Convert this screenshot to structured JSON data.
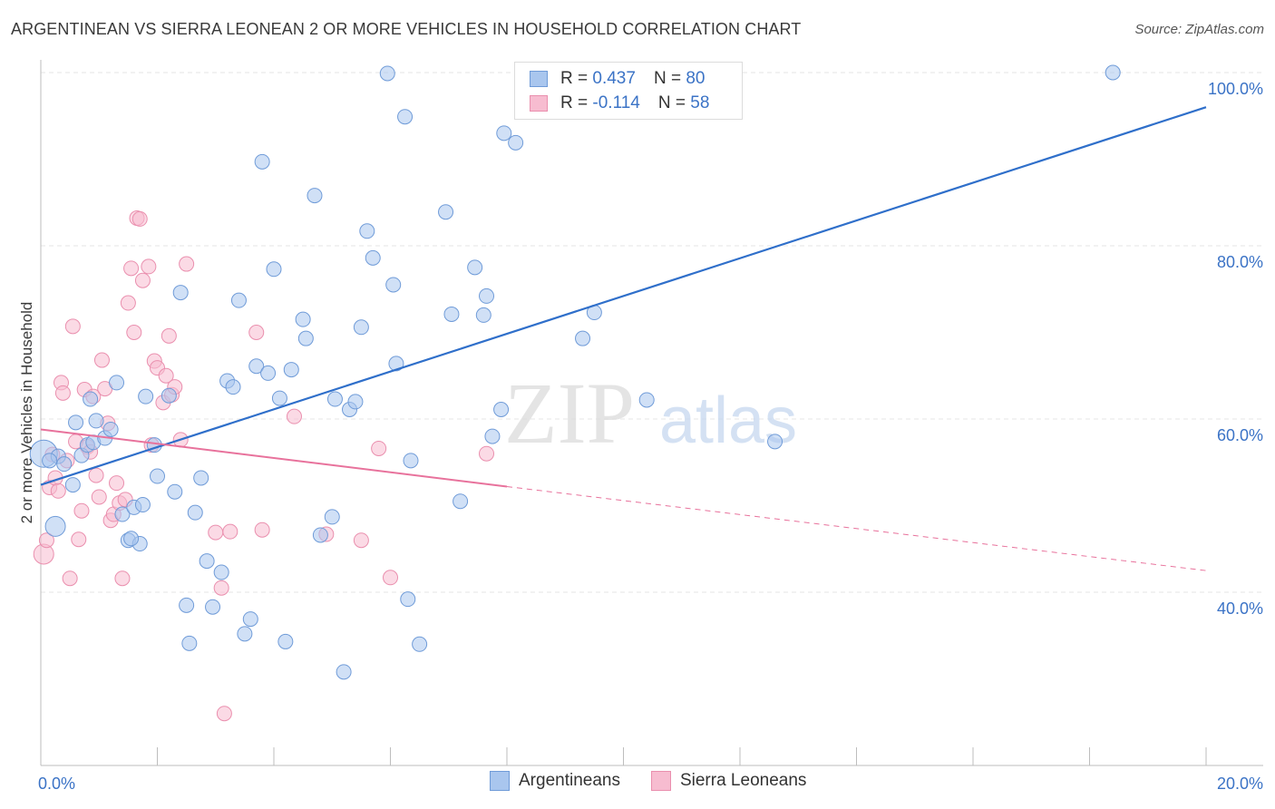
{
  "title": "ARGENTINEAN VS SIERRA LEONEAN 2 OR MORE VEHICLES IN HOUSEHOLD CORRELATION CHART",
  "source": "Source: ZipAtlas.com",
  "watermark": {
    "zip": "ZIP",
    "atlas": "atlas"
  },
  "legend": {
    "rows": [
      {
        "r_label": "R =",
        "r_value": "0.437",
        "n_label": "N =",
        "n_value": "80"
      },
      {
        "r_label": "R =",
        "r_value": "-0.114",
        "n_label": "N =",
        "n_value": "58"
      }
    ]
  },
  "bottom_legend": [
    "Argentineans",
    "Sierra Leoneans"
  ],
  "colors": {
    "blue_fill": "#a9c6ee",
    "blue_stroke": "#6f9bd8",
    "blue_line": "#2f6fca",
    "pink_fill": "#f7bcd0",
    "pink_stroke": "#ea8fae",
    "pink_line": "#e8729c",
    "tick_text": "#3b73c6",
    "grid": "#e6e6e6"
  },
  "chart_data": {
    "type": "scatter",
    "title": "ARGENTINEAN VS SIERRA LEONEAN 2 OR MORE VEHICLES IN HOUSEHOLD CORRELATION CHART",
    "xlabel": "",
    "ylabel": "2 or more Vehicles in Household",
    "xlim": [
      0,
      20
    ],
    "ylim": [
      20,
      102
    ],
    "x_ticks": [
      "0.0%",
      "20.0%"
    ],
    "y_ticks": [
      {
        "value": 40,
        "label": "40.0%"
      },
      {
        "value": 60,
        "label": "60.0%"
      },
      {
        "value": 80,
        "label": "80.0%"
      },
      {
        "value": 100,
        "label": "100.0%"
      }
    ],
    "grid": true,
    "legend_position": "top-center",
    "series": [
      {
        "name": "Argentineans",
        "trend": {
          "x": [
            0.0,
            20.0
          ],
          "y": [
            52.4,
            96.0
          ],
          "style": "solid"
        },
        "points": [
          {
            "x": 0.05,
            "y": 56.0,
            "s": "l"
          },
          {
            "x": 0.25,
            "y": 47.6,
            "s": "m"
          },
          {
            "x": 0.3,
            "y": 55.7
          },
          {
            "x": 0.4,
            "y": 54.8
          },
          {
            "x": 0.6,
            "y": 59.6
          },
          {
            "x": 0.7,
            "y": 55.8
          },
          {
            "x": 0.8,
            "y": 57.0
          },
          {
            "x": 0.85,
            "y": 62.3
          },
          {
            "x": 0.9,
            "y": 57.3
          },
          {
            "x": 0.95,
            "y": 59.8
          },
          {
            "x": 1.1,
            "y": 57.8
          },
          {
            "x": 1.2,
            "y": 58.8
          },
          {
            "x": 1.3,
            "y": 64.2
          },
          {
            "x": 1.4,
            "y": 49.0
          },
          {
            "x": 1.5,
            "y": 46.0
          },
          {
            "x": 1.6,
            "y": 49.8
          },
          {
            "x": 1.7,
            "y": 45.6
          },
          {
            "x": 1.75,
            "y": 50.1
          },
          {
            "x": 1.8,
            "y": 62.6
          },
          {
            "x": 1.95,
            "y": 57.0
          },
          {
            "x": 2.0,
            "y": 53.4
          },
          {
            "x": 2.2,
            "y": 62.7
          },
          {
            "x": 2.3,
            "y": 51.6
          },
          {
            "x": 2.4,
            "y": 74.6
          },
          {
            "x": 2.5,
            "y": 38.5
          },
          {
            "x": 2.55,
            "y": 34.1
          },
          {
            "x": 2.65,
            "y": 49.2
          },
          {
            "x": 2.75,
            "y": 53.2
          },
          {
            "x": 2.85,
            "y": 43.6
          },
          {
            "x": 2.95,
            "y": 38.3
          },
          {
            "x": 3.1,
            "y": 42.3
          },
          {
            "x": 3.2,
            "y": 64.4
          },
          {
            "x": 3.3,
            "y": 63.7
          },
          {
            "x": 3.4,
            "y": 73.7
          },
          {
            "x": 3.5,
            "y": 35.2
          },
          {
            "x": 3.6,
            "y": 36.9
          },
          {
            "x": 3.7,
            "y": 66.1
          },
          {
            "x": 3.8,
            "y": 89.7
          },
          {
            "x": 3.9,
            "y": 65.3
          },
          {
            "x": 4.0,
            "y": 77.3
          },
          {
            "x": 4.1,
            "y": 62.4
          },
          {
            "x": 4.2,
            "y": 34.3
          },
          {
            "x": 4.3,
            "y": 65.7
          },
          {
            "x": 4.5,
            "y": 71.5
          },
          {
            "x": 4.55,
            "y": 69.3
          },
          {
            "x": 4.7,
            "y": 85.8
          },
          {
            "x": 4.8,
            "y": 46.6
          },
          {
            "x": 5.0,
            "y": 48.7
          },
          {
            "x": 5.2,
            "y": 30.8
          },
          {
            "x": 5.3,
            "y": 61.1
          },
          {
            "x": 5.4,
            "y": 62.0
          },
          {
            "x": 5.5,
            "y": 70.6
          },
          {
            "x": 5.6,
            "y": 81.7
          },
          {
            "x": 5.7,
            "y": 78.6
          },
          {
            "x": 5.95,
            "y": 99.9
          },
          {
            "x": 6.05,
            "y": 75.5
          },
          {
            "x": 6.1,
            "y": 66.4
          },
          {
            "x": 6.25,
            "y": 94.9
          },
          {
            "x": 6.3,
            "y": 39.2
          },
          {
            "x": 6.35,
            "y": 55.2
          },
          {
            "x": 6.5,
            "y": 34.0
          },
          {
            "x": 6.95,
            "y": 83.9
          },
          {
            "x": 7.05,
            "y": 72.1
          },
          {
            "x": 7.2,
            "y": 50.5
          },
          {
            "x": 7.45,
            "y": 77.5
          },
          {
            "x": 7.6,
            "y": 72.0
          },
          {
            "x": 7.65,
            "y": 74.2
          },
          {
            "x": 7.75,
            "y": 58.0
          },
          {
            "x": 7.9,
            "y": 61.1
          },
          {
            "x": 7.95,
            "y": 93.0
          },
          {
            "x": 8.15,
            "y": 91.9
          },
          {
            "x": 9.3,
            "y": 69.3
          },
          {
            "x": 9.5,
            "y": 72.3
          },
          {
            "x": 10.4,
            "y": 62.2
          },
          {
            "x": 12.6,
            "y": 57.4
          },
          {
            "x": 18.4,
            "y": 100.0
          },
          {
            "x": 0.15,
            "y": 55.2
          },
          {
            "x": 0.55,
            "y": 52.4
          },
          {
            "x": 1.55,
            "y": 46.2
          },
          {
            "x": 5.05,
            "y": 62.3
          }
        ]
      },
      {
        "name": "Sierra Leoneans",
        "trend": {
          "x": [
            0.0,
            8.0,
            20.0
          ],
          "y": [
            58.8,
            52.2,
            42.5
          ],
          "solid_until": 8.0
        },
        "points": [
          {
            "x": 0.05,
            "y": 44.4,
            "s": "m"
          },
          {
            "x": 0.1,
            "y": 46.0
          },
          {
            "x": 0.15,
            "y": 52.1
          },
          {
            "x": 0.2,
            "y": 55.9
          },
          {
            "x": 0.25,
            "y": 53.2
          },
          {
            "x": 0.3,
            "y": 51.7
          },
          {
            "x": 0.35,
            "y": 64.2
          },
          {
            "x": 0.38,
            "y": 63.0
          },
          {
            "x": 0.45,
            "y": 55.2
          },
          {
            "x": 0.5,
            "y": 41.6
          },
          {
            "x": 0.55,
            "y": 70.7
          },
          {
            "x": 0.6,
            "y": 57.4
          },
          {
            "x": 0.65,
            "y": 46.1
          },
          {
            "x": 0.7,
            "y": 49.4
          },
          {
            "x": 0.75,
            "y": 63.4
          },
          {
            "x": 0.8,
            "y": 56.8
          },
          {
            "x": 0.85,
            "y": 56.2
          },
          {
            "x": 0.9,
            "y": 62.6
          },
          {
            "x": 0.95,
            "y": 53.5
          },
          {
            "x": 1.0,
            "y": 51.0
          },
          {
            "x": 1.05,
            "y": 66.8
          },
          {
            "x": 1.1,
            "y": 63.5
          },
          {
            "x": 1.15,
            "y": 59.5
          },
          {
            "x": 1.2,
            "y": 48.3
          },
          {
            "x": 1.25,
            "y": 49.0
          },
          {
            "x": 1.3,
            "y": 52.6
          },
          {
            "x": 1.35,
            "y": 50.3
          },
          {
            "x": 1.4,
            "y": 41.6
          },
          {
            "x": 1.45,
            "y": 50.7
          },
          {
            "x": 1.5,
            "y": 73.4
          },
          {
            "x": 1.55,
            "y": 77.4
          },
          {
            "x": 1.6,
            "y": 70.0
          },
          {
            "x": 1.65,
            "y": 83.2
          },
          {
            "x": 1.7,
            "y": 83.1
          },
          {
            "x": 1.75,
            "y": 76.0
          },
          {
            "x": 1.85,
            "y": 77.6
          },
          {
            "x": 1.9,
            "y": 57.0
          },
          {
            "x": 1.95,
            "y": 66.7
          },
          {
            "x": 2.0,
            "y": 65.9
          },
          {
            "x": 2.1,
            "y": 61.9
          },
          {
            "x": 2.15,
            "y": 65.0
          },
          {
            "x": 2.2,
            "y": 69.6
          },
          {
            "x": 2.25,
            "y": 62.8
          },
          {
            "x": 2.3,
            "y": 63.7
          },
          {
            "x": 2.4,
            "y": 57.6
          },
          {
            "x": 2.5,
            "y": 77.9
          },
          {
            "x": 3.0,
            "y": 46.9
          },
          {
            "x": 3.1,
            "y": 40.5
          },
          {
            "x": 3.15,
            "y": 26.0
          },
          {
            "x": 3.25,
            "y": 47.0
          },
          {
            "x": 3.7,
            "y": 70.0
          },
          {
            "x": 3.8,
            "y": 47.2
          },
          {
            "x": 4.35,
            "y": 60.3
          },
          {
            "x": 4.9,
            "y": 46.7
          },
          {
            "x": 5.5,
            "y": 46.0
          },
          {
            "x": 5.8,
            "y": 56.6
          },
          {
            "x": 6.0,
            "y": 41.7
          },
          {
            "x": 7.65,
            "y": 56.0
          }
        ]
      }
    ]
  }
}
